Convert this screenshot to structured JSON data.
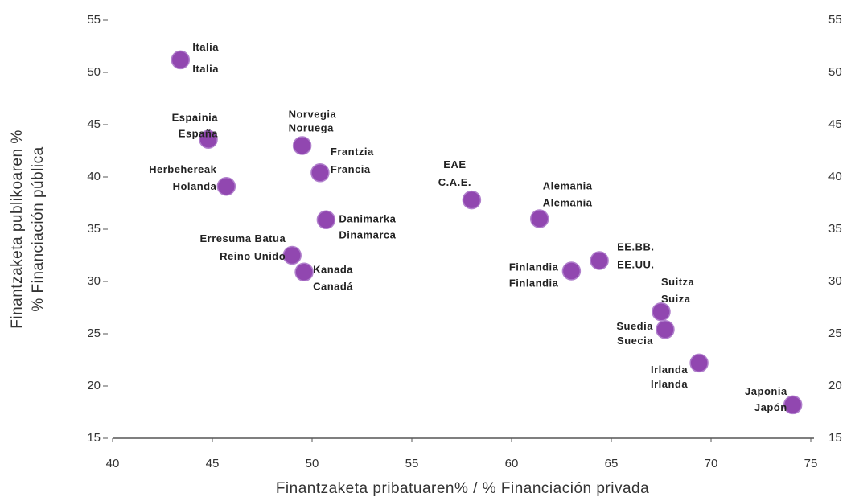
{
  "chart_data": {
    "type": "scatter",
    "x_label": "Finantzaketa pribatuaren% / % Financiación privada",
    "y_label": [
      "Finantzaketa publikoaren %",
      "% Financiación pública"
    ],
    "labels": [
      [
        "Italia",
        "Italia"
      ],
      [
        "Espainia",
        "España"
      ],
      [
        "Herbehereak",
        "Holanda"
      ],
      [
        "Norvegia",
        "Noruega"
      ],
      [
        "Frantzia",
        "Francia"
      ],
      [
        "Danimarka",
        "Dinamarca"
      ],
      [
        "Erresuma Batua",
        "Reino Unido"
      ],
      [
        "Kanada",
        "Canadá"
      ],
      [
        "EAE",
        "C.A.E."
      ],
      [
        "Alemania",
        "Alemania"
      ],
      [
        "EE.BB.",
        "EE.UU."
      ],
      [
        "Finlandia",
        "Finlandia"
      ],
      [
        "Suitza",
        "Suiza"
      ],
      [
        "Suedia",
        "Suecia"
      ],
      [
        "Irlanda",
        "Irlanda"
      ],
      [
        "Japonia",
        "Japón"
      ]
    ],
    "x": [
      43.4,
      44.8,
      45.7,
      49.5,
      50.4,
      50.7,
      49.0,
      49.6,
      58.0,
      61.4,
      64.4,
      63.0,
      67.5,
      67.7,
      69.4,
      74.1
    ],
    "values": [
      51.2,
      43.6,
      39.1,
      43.0,
      40.4,
      35.9,
      32.5,
      30.9,
      37.8,
      36.0,
      32.0,
      31.0,
      27.1,
      25.4,
      22.2,
      18.2
    ],
    "color": "#9147b0",
    "xlim": [
      40,
      75
    ],
    "xticks": [
      40,
      45,
      50,
      55,
      60,
      65,
      70,
      75
    ],
    "ylim": [
      15,
      55
    ],
    "yticks": [
      15,
      20,
      25,
      30,
      35,
      40,
      45,
      50,
      55
    ]
  }
}
